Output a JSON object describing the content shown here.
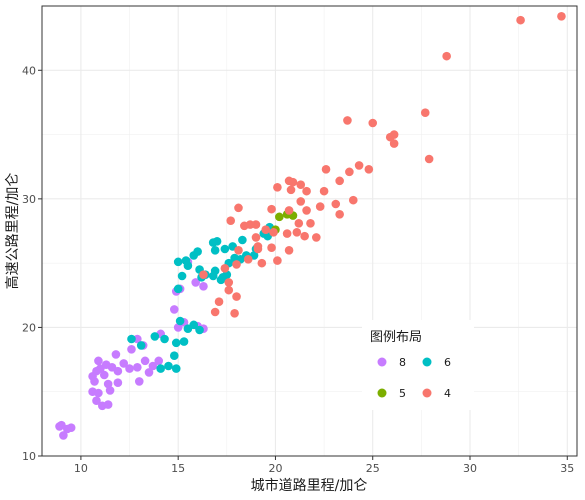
{
  "chart_data": {
    "type": "scatter",
    "xlabel": "城市道路里程/加仑",
    "ylabel": "高速公路里程/加仑",
    "xlim": [
      8,
      35.5
    ],
    "ylim": [
      10,
      45
    ],
    "xticks": [
      10,
      15,
      20,
      25,
      30,
      35
    ],
    "yticks": [
      10,
      20,
      30,
      40
    ],
    "grid": true,
    "legend": {
      "title": "图例布局",
      "placement": "inside-bottom-right",
      "entries": [
        {
          "label": "8",
          "color": "#C77CFF"
        },
        {
          "label": "6",
          "color": "#00BFC4"
        },
        {
          "label": "5",
          "color": "#7CAE00"
        },
        {
          "label": "4",
          "color": "#F8766D"
        }
      ]
    },
    "series": [
      {
        "name": "8",
        "color": "#C77CFF",
        "points": [
          [
            8.9,
            12.3
          ],
          [
            9.1,
            11.6
          ],
          [
            9.3,
            12.1
          ],
          [
            9.5,
            12.2
          ],
          [
            9.0,
            12.4
          ],
          [
            10.6,
            15.0
          ],
          [
            10.7,
            15.8
          ],
          [
            10.8,
            16.6
          ],
          [
            10.9,
            17.4
          ],
          [
            11.0,
            16.8
          ],
          [
            11.2,
            16.3
          ],
          [
            11.4,
            15.6
          ],
          [
            10.8,
            14.3
          ],
          [
            11.1,
            13.9
          ],
          [
            11.4,
            14.0
          ],
          [
            11.6,
            16.9
          ],
          [
            11.9,
            16.6
          ],
          [
            11.3,
            17.1
          ],
          [
            11.8,
            17.9
          ],
          [
            12.2,
            17.2
          ],
          [
            12.5,
            16.8
          ],
          [
            12.9,
            16.9
          ],
          [
            13.3,
            17.4
          ],
          [
            13.7,
            17.0
          ],
          [
            14.0,
            17.4
          ],
          [
            12.6,
            18.3
          ],
          [
            13.2,
            18.6
          ],
          [
            12.9,
            19.1
          ],
          [
            14.1,
            19.5
          ],
          [
            15.0,
            20.0
          ],
          [
            15.3,
            20.4
          ],
          [
            14.8,
            21.4
          ],
          [
            15.1,
            23.0
          ],
          [
            16.3,
            23.2
          ],
          [
            14.9,
            22.8
          ],
          [
            15.5,
            25.1
          ],
          [
            16.0,
            20.1
          ],
          [
            16.3,
            19.9
          ],
          [
            10.6,
            16.2
          ],
          [
            11.5,
            15.1
          ],
          [
            10.9,
            14.9
          ],
          [
            11.9,
            15.7
          ],
          [
            13.0,
            15.8
          ],
          [
            13.5,
            16.5
          ],
          [
            15.9,
            23.5
          ]
        ]
      },
      {
        "name": "6",
        "color": "#00BFC4",
        "points": [
          [
            12.6,
            19.1
          ],
          [
            13.1,
            18.6
          ],
          [
            13.8,
            19.3
          ],
          [
            14.3,
            19.1
          ],
          [
            14.9,
            18.8
          ],
          [
            15.3,
            18.9
          ],
          [
            14.8,
            17.8
          ],
          [
            14.5,
            17.0
          ],
          [
            14.9,
            16.8
          ],
          [
            14.1,
            16.8
          ],
          [
            15.5,
            19.9
          ],
          [
            16.1,
            19.8
          ],
          [
            15.8,
            20.2
          ],
          [
            15.1,
            20.5
          ],
          [
            15.0,
            23.0
          ],
          [
            15.2,
            24.0
          ],
          [
            15.0,
            25.1
          ],
          [
            15.5,
            24.8
          ],
          [
            15.8,
            25.6
          ],
          [
            16.0,
            25.9
          ],
          [
            16.1,
            24.5
          ],
          [
            16.4,
            24.1
          ],
          [
            16.8,
            24.0
          ],
          [
            16.9,
            26.0
          ],
          [
            17.0,
            26.7
          ],
          [
            17.4,
            26.1
          ],
          [
            17.6,
            25.0
          ],
          [
            17.9,
            25.4
          ],
          [
            18.2,
            25.3
          ],
          [
            18.5,
            25.6
          ],
          [
            18.9,
            25.6
          ],
          [
            19.4,
            27.3
          ],
          [
            19.6,
            27.1
          ],
          [
            17.5,
            24.1
          ],
          [
            17.3,
            23.9
          ],
          [
            16.2,
            23.9
          ],
          [
            17.2,
            23.7
          ],
          [
            16.8,
            26.6
          ],
          [
            17.8,
            26.3
          ],
          [
            18.3,
            26.8
          ],
          [
            19.0,
            26.1
          ],
          [
            19.7,
            27.8
          ],
          [
            15.4,
            25.2
          ],
          [
            16.9,
            24.4
          ]
        ]
      },
      {
        "name": "5",
        "color": "#7CAE00",
        "points": [
          [
            20.0,
            27.6
          ],
          [
            20.2,
            28.6
          ],
          [
            20.9,
            28.7
          ],
          [
            20.6,
            28.8
          ]
        ]
      },
      {
        "name": "4",
        "color": "#F8766D",
        "points": [
          [
            34.7,
            44.2
          ],
          [
            32.6,
            43.9
          ],
          [
            28.8,
            41.1
          ],
          [
            27.7,
            36.7
          ],
          [
            23.7,
            36.1
          ],
          [
            25.0,
            35.9
          ],
          [
            26.1,
            35.0
          ],
          [
            25.9,
            34.8
          ],
          [
            26.1,
            34.3
          ],
          [
            27.9,
            33.1
          ],
          [
            23.8,
            32.1
          ],
          [
            24.3,
            32.6
          ],
          [
            24.8,
            32.3
          ],
          [
            22.6,
            32.3
          ],
          [
            20.9,
            31.3
          ],
          [
            21.3,
            31.1
          ],
          [
            20.7,
            31.4
          ],
          [
            20.1,
            30.9
          ],
          [
            20.8,
            30.7
          ],
          [
            21.6,
            30.6
          ],
          [
            22.5,
            30.6
          ],
          [
            23.3,
            31.4
          ],
          [
            23.1,
            29.6
          ],
          [
            24.0,
            29.9
          ],
          [
            22.3,
            29.4
          ],
          [
            21.3,
            29.8
          ],
          [
            21.6,
            29.1
          ],
          [
            19.8,
            29.2
          ],
          [
            20.7,
            29.1
          ],
          [
            21.8,
            28.1
          ],
          [
            21.2,
            28.1
          ],
          [
            21.5,
            27.1
          ],
          [
            22.1,
            27.0
          ],
          [
            23.3,
            28.8
          ],
          [
            20.6,
            27.3
          ],
          [
            19.9,
            27.4
          ],
          [
            19.5,
            27.6
          ],
          [
            19.0,
            27.0
          ],
          [
            18.4,
            27.9
          ],
          [
            19.0,
            28.0
          ],
          [
            17.7,
            28.3
          ],
          [
            18.1,
            29.3
          ],
          [
            19.1,
            26.1
          ],
          [
            19.8,
            26.2
          ],
          [
            20.7,
            26.0
          ],
          [
            20.1,
            25.2
          ],
          [
            19.3,
            25.0
          ],
          [
            18.6,
            25.3
          ],
          [
            18.0,
            24.9
          ],
          [
            17.4,
            24.6
          ],
          [
            16.3,
            24.1
          ],
          [
            17.6,
            23.5
          ],
          [
            17.1,
            22.0
          ],
          [
            16.9,
            21.2
          ],
          [
            17.9,
            21.1
          ],
          [
            18.0,
            22.4
          ],
          [
            17.6,
            22.9
          ],
          [
            19.1,
            26.3
          ],
          [
            18.1,
            26.0
          ],
          [
            18.7,
            28.0
          ],
          [
            21.1,
            27.4
          ]
        ]
      }
    ]
  }
}
